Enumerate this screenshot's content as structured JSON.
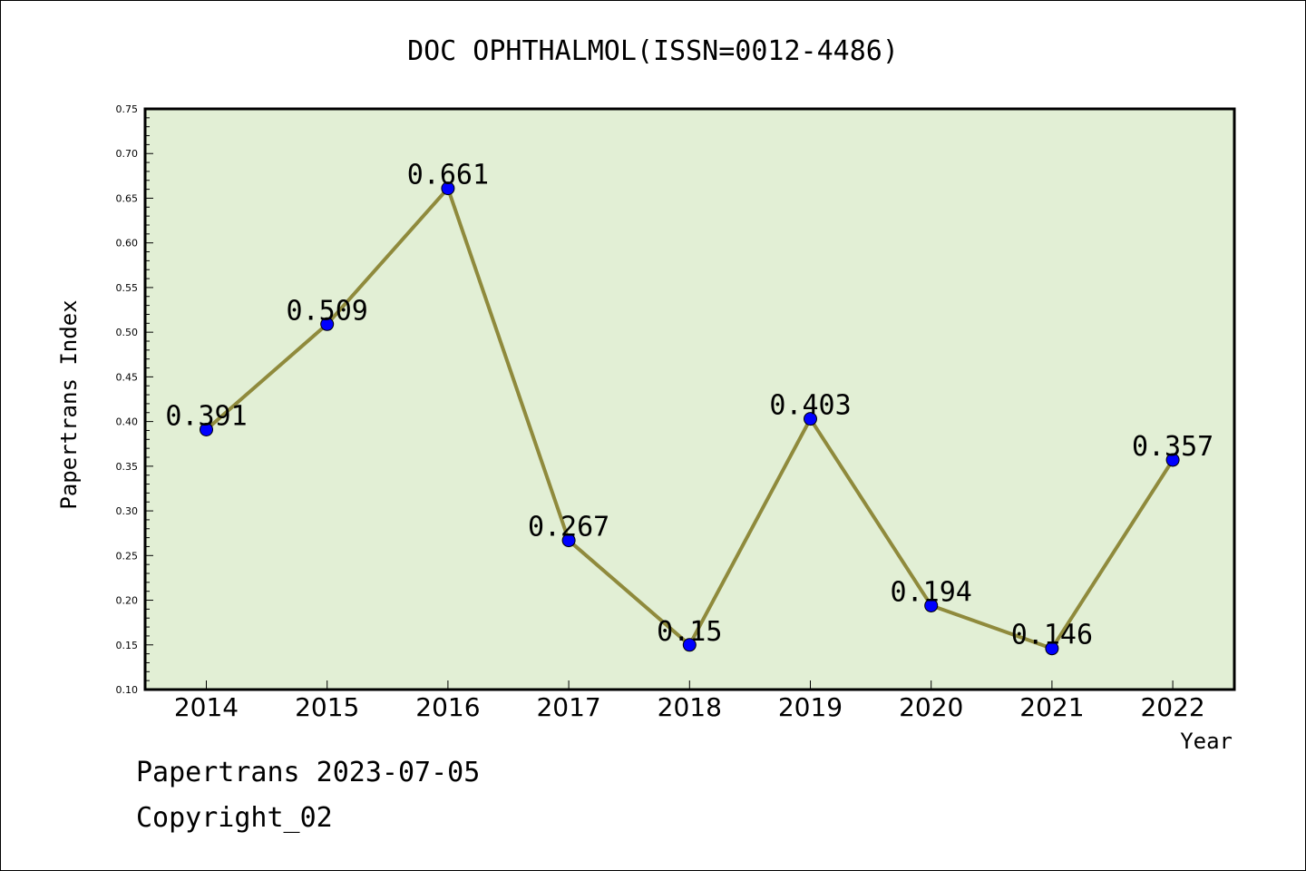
{
  "chart_data": {
    "type": "line",
    "title": "DOC OPHTHALMOL(ISSN=0012-4486)",
    "xlabel": "Year",
    "ylabel": "Papertrans Index",
    "categories": [
      "2014",
      "2015",
      "2016",
      "2017",
      "2018",
      "2019",
      "2020",
      "2021",
      "2022"
    ],
    "values": [
      0.391,
      0.509,
      0.661,
      0.267,
      0.15,
      0.403,
      0.194,
      0.146,
      0.357
    ],
    "data_labels": [
      "0.391",
      "0.509",
      "0.661",
      "0.267",
      "0.15",
      "0.403",
      "0.194",
      "0.146",
      "0.357"
    ],
    "ylim": [
      0.1,
      0.75
    ],
    "yticks": [
      "0.10",
      "0.15",
      "0.20",
      "0.25",
      "0.30",
      "0.35",
      "0.40",
      "0.45",
      "0.50",
      "0.55",
      "0.60",
      "0.65",
      "0.70",
      "0.75"
    ],
    "grid": false,
    "colors": {
      "plot_background": "#e2efd5",
      "line": "#8f8a3c",
      "marker": "#0000ff"
    }
  },
  "footer": {
    "line1": "Papertrans 2023-07-05",
    "line2": "Copyright_02"
  }
}
